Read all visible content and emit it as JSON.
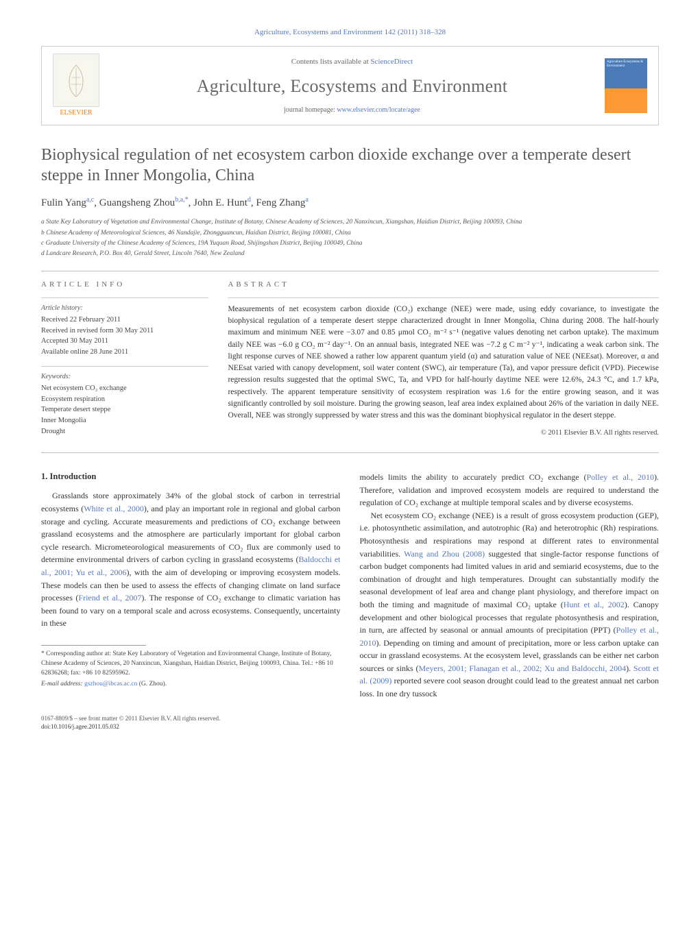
{
  "journal_ref": "Agriculture, Ecosystems and Environment 142 (2011) 318–328",
  "header": {
    "contents_prefix": "Contents lists available at ",
    "contents_link": "ScienceDirect",
    "journal_name": "Agriculture, Ecosystems and Environment",
    "homepage_prefix": "journal homepage: ",
    "homepage_link": "www.elsevier.com/locate/agee",
    "elsevier_label": "ELSEVIER",
    "cover_text": "Agriculture Ecosystems & Environment"
  },
  "title": "Biophysical regulation of net ecosystem carbon dioxide exchange over a temperate desert steppe in Inner Mongolia, China",
  "authors_html": "Fulin Yang<sup>a,c</sup>, Guangsheng Zhou<sup>b,a,*</sup>, John E. Hunt<sup>d</sup>, Feng Zhang<sup>a</sup>",
  "affiliations": [
    "a State Key Laboratory of Vegetation and Environmental Change, Institute of Botany, Chinese Academy of Sciences, 20 Nanxincun, Xiangshan, Haidian District, Beijing 100093, China",
    "b Chinese Academy of Meteorological Sciences, 46 Nandajie, Zhongguancun, Haidian District, Beijing 100081, China",
    "c Graduate University of the Chinese Academy of Sciences, 19A Yuquan Road, Shijingshan District, Beijing 100049, China",
    "d Landcare Research, P.O. Box 40, Gerald Street, Lincoln 7640, New Zealand"
  ],
  "article_info": {
    "label": "ARTICLE INFO",
    "history_label": "Article history:",
    "history": [
      "Received 22 February 2011",
      "Received in revised form 30 May 2011",
      "Accepted 30 May 2011",
      "Available online 28 June 2011"
    ],
    "keywords_label": "Keywords:",
    "keywords": [
      "Net ecosystem CO₂ exchange",
      "Ecosystem respiration",
      "Temperate desert steppe",
      "Inner Mongolia",
      "Drought"
    ]
  },
  "abstract": {
    "label": "ABSTRACT",
    "text": "Measurements of net ecosystem carbon dioxide (CO₂) exchange (NEE) were made, using eddy covariance, to investigate the biophysical regulation of a temperate desert steppe characterized drought in Inner Mongolia, China during 2008. The half-hourly maximum and minimum NEE were −3.07 and 0.85 μmol CO₂ m⁻² s⁻¹ (negative values denoting net carbon uptake). The maximum daily NEE was −6.0 g CO₂ m⁻² day⁻¹. On an annual basis, integrated NEE was −7.2 g C m⁻² y⁻¹, indicating a weak carbon sink. The light response curves of NEE showed a rather low apparent quantum yield (α) and saturation value of NEE (NEEsat). Moreover, α and NEEsat varied with canopy development, soil water content (SWC), air temperature (Ta), and vapor pressure deficit (VPD). Piecewise regression results suggested that the optimal SWC, Ta, and VPD for half-hourly daytime NEE were 12.6%, 24.3 °C, and 1.7 kPa, respectively. The apparent temperature sensitivity of ecosystem respiration was 1.6 for the entire growing season, and it was significantly controlled by soil moisture. During the growing season, leaf area index explained about 26% of the variation in daily NEE. Overall, NEE was strongly suppressed by water stress and this was the dominant biophysical regulator in the desert steppe.",
    "copyright": "© 2011 Elsevier B.V. All rights reserved."
  },
  "body": {
    "section_heading": "1. Introduction",
    "left_para": "Grasslands store approximately 34% of the global stock of carbon in terrestrial ecosystems (<span class=\"cite\">White et al., 2000</span>), and play an important role in regional and global carbon storage and cycling. Accurate measurements and predictions of CO₂ exchange between grassland ecosystems and the atmosphere are particularly important for global carbon cycle research. Micrometeorological measurements of CO₂ flux are commonly used to determine environmental drivers of carbon cycling in grassland ecosystems (<span class=\"cite\">Baldocchi et al., 2001; Yu et al., 2006</span>), with the aim of developing or improving ecosystem models. These models can then be used to assess the effects of changing climate on land surface processes (<span class=\"cite\">Friend et al., 2007</span>). The response of CO₂ exchange to climatic variation has been found to vary on a temporal scale and across ecosystems. Consequently, uncertainty in these",
    "right_para_1": "models limits the ability to accurately predict CO₂ exchange (<span class=\"cite\">Polley et al., 2010</span>). Therefore, validation and improved ecosystem models are required to understand the regulation of CO₂ exchange at multiple temporal scales and by diverse ecosystems.",
    "right_para_2": "Net ecosystem CO₂ exchange (NEE) is a result of gross ecosystem production (GEP), i.e. photosynthetic assimilation, and autotrophic (Ra) and heterotrophic (Rh) respirations. Photosynthesis and respirations may respond at different rates to environmental variabilities. <span class=\"cite\">Wang and Zhou (2008)</span> suggested that single-factor response functions of carbon budget components had limited values in arid and semiarid ecosystems, due to the combination of drought and high temperatures. Drought can substantially modify the seasonal development of leaf area and change plant physiology, and therefore impact on both the timing and magnitude of maximal CO₂ uptake (<span class=\"cite\">Hunt et al., 2002</span>). Canopy development and other biological processes that regulate photosynthesis and respiration, in turn, are affected by seasonal or annual amounts of precipitation (PPT) (<span class=\"cite\">Polley et al., 2010</span>). Depending on timing and amount of precipitation, more or less carbon uptake can occur in grassland ecosystems. At the ecosystem level, grasslands can be either net carbon sources or sinks (<span class=\"cite\">Meyers, 2001; Flanagan et al., 2002; Xu and Baldocchi, 2004</span>). <span class=\"cite\">Scott et al. (2009)</span> reported severe cool season drought could lead to the greatest annual net carbon loss. In one dry tussock"
  },
  "footnote": {
    "corr_text": "* Corresponding author at: State Key Laboratory of Vegetation and Environmental Change, Institute of Botany, Chinese Academy of Sciences, 20 Nanxincun, Xiangshan, Haidian District, Beijing 100093, China. Tel.: +86 10 62836268; fax: +86 10 82595962.",
    "email_label": "E-mail address: ",
    "email": "gszhou@ibcas.ac.cn",
    "email_suffix": " (G. Zhou)."
  },
  "footer": {
    "line1": "0167-8809/$ – see front matter © 2011 Elsevier B.V. All rights reserved.",
    "doi": "doi:10.1016/j.agee.2011.05.032"
  },
  "colors": {
    "link": "#5577bb",
    "text": "#333333",
    "heading_gray": "#666666",
    "rule": "#bbbbbb",
    "orange": "#ff7700"
  }
}
